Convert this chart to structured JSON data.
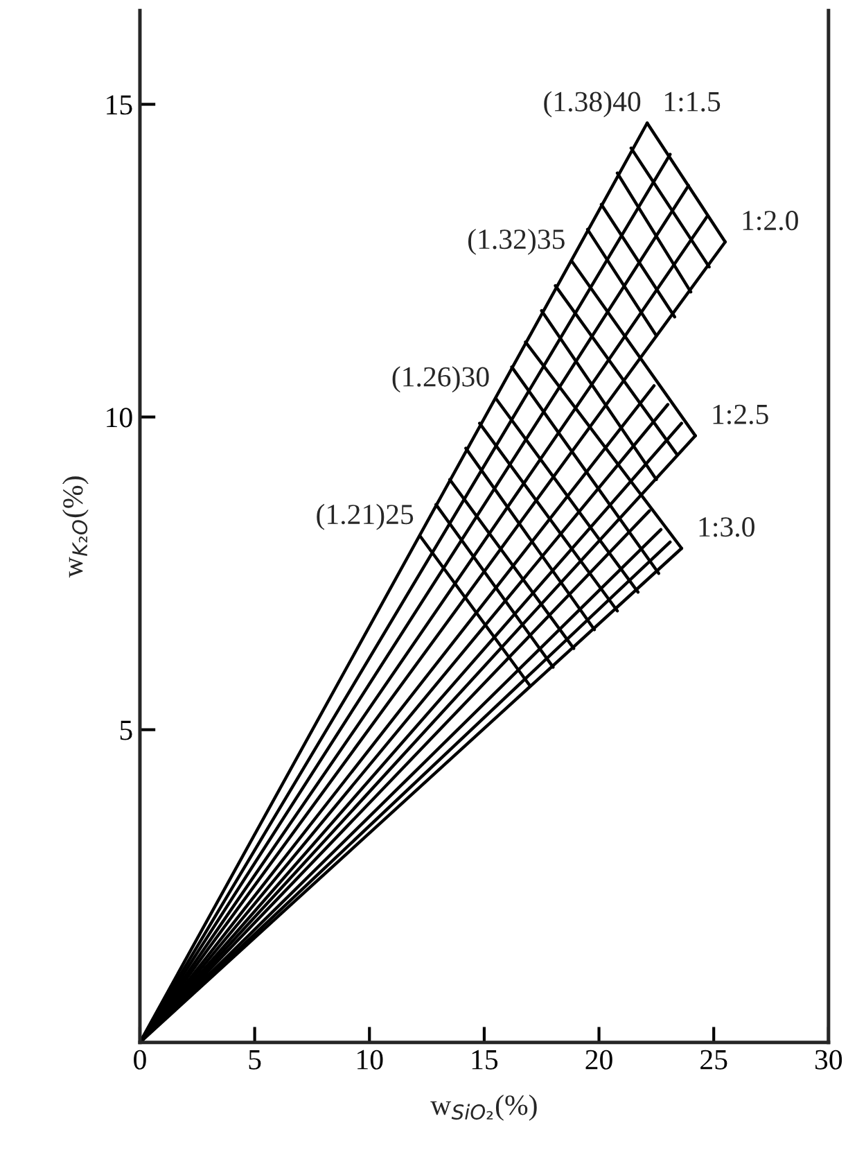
{
  "chart_data": {
    "type": "line",
    "xlabel": "w$_{SiO₂}$(%)",
    "ylabel": "w$_{K₂O}$(%)",
    "xlim": [
      0,
      30
    ],
    "ylim": [
      0,
      16.5
    ],
    "xticks": [
      0,
      5,
      10,
      15,
      20,
      25,
      30
    ],
    "yticks": [
      5,
      10,
      15
    ],
    "grid": false,
    "marker": "none",
    "line_style": "solid",
    "annotations": [
      {
        "text": "(1.21)25",
        "x": 12.2,
        "y": 8.1
      },
      {
        "text": "(1.26)30",
        "x": 15.5,
        "y": 10.3
      },
      {
        "text": "(1.32)35",
        "x": 18.8,
        "y": 12.5
      },
      {
        "text": "(1.38)40",
        "x": 22.1,
        "y": 14.7
      },
      {
        "text": "1:1.5",
        "x": 22.1,
        "y": 14.7
      },
      {
        "text": "1:2.0",
        "x": 25.5,
        "y": 12.8
      },
      {
        "text": "1:2.5",
        "x": 24.2,
        "y": 9.7
      },
      {
        "text": "1:3.0",
        "x": 23.6,
        "y": 7.9
      }
    ],
    "series": [
      {
        "color": "#000000",
        "x": [
          0,
          22.1
        ],
        "values": [
          0,
          14.7
        ]
      },
      {
        "color": "#000000",
        "x": [
          0,
          23.1
        ],
        "values": [
          0,
          14.2
        ]
      },
      {
        "color": "#000000",
        "x": [
          0,
          23.9
        ],
        "values": [
          0,
          13.7
        ]
      },
      {
        "color": "#000000",
        "x": [
          0,
          24.7
        ],
        "values": [
          0,
          13.2
        ]
      },
      {
        "color": "#000000",
        "x": [
          0,
          25.5
        ],
        "values": [
          0,
          12.8
        ]
      },
      {
        "color": "#000000",
        "x": [
          0,
          22.4
        ],
        "values": [
          0,
          10.5
        ]
      },
      {
        "color": "#000000",
        "x": [
          0,
          23.0
        ],
        "values": [
          0,
          10.2
        ]
      },
      {
        "color": "#000000",
        "x": [
          0,
          23.6
        ],
        "values": [
          0,
          9.9
        ]
      },
      {
        "color": "#000000",
        "x": [
          0,
          24.2
        ],
        "values": [
          0,
          9.7
        ]
      },
      {
        "color": "#000000",
        "x": [
          0,
          22.2
        ],
        "values": [
          0,
          8.5
        ]
      },
      {
        "color": "#000000",
        "x": [
          0,
          22.7
        ],
        "values": [
          0,
          8.2
        ]
      },
      {
        "color": "#000000",
        "x": [
          0,
          23.1
        ],
        "values": [
          0,
          8.0
        ]
      },
      {
        "color": "#000000",
        "x": [
          0,
          23.6
        ],
        "values": [
          0,
          7.9
        ]
      },
      {
        "color": "#000000",
        "x": [
          12.2,
          17.0
        ],
        "values": [
          8.1,
          5.7
        ]
      },
      {
        "color": "#000000",
        "x": [
          12.9,
          18.0
        ],
        "values": [
          8.6,
          6.0
        ]
      },
      {
        "color": "#000000",
        "x": [
          13.5,
          18.9
        ],
        "values": [
          9.0,
          6.3
        ]
      },
      {
        "color": "#000000",
        "x": [
          14.2,
          19.8
        ],
        "values": [
          9.5,
          6.6
        ]
      },
      {
        "color": "#000000",
        "x": [
          14.8,
          20.8
        ],
        "values": [
          9.9,
          6.9
        ]
      },
      {
        "color": "#000000",
        "x": [
          15.5,
          21.7
        ],
        "values": [
          10.3,
          7.2
        ]
      },
      {
        "color": "#000000",
        "x": [
          16.2,
          22.6
        ],
        "values": [
          10.8,
          7.5
        ]
      },
      {
        "color": "#000000",
        "x": [
          16.8,
          23.6
        ],
        "values": [
          11.2,
          7.9
        ]
      },
      {
        "color": "#000000",
        "x": [
          17.5,
          22.5
        ],
        "values": [
          11.7,
          9.0
        ]
      },
      {
        "color": "#000000",
        "x": [
          18.1,
          23.4
        ],
        "values": [
          12.1,
          9.4
        ]
      },
      {
        "color": "#000000",
        "x": [
          18.8,
          24.2
        ],
        "values": [
          12.5,
          9.7
        ]
      },
      {
        "color": "#000000",
        "x": [
          19.5,
          22.5
        ],
        "values": [
          13.0,
          11.3
        ]
      },
      {
        "color": "#000000",
        "x": [
          20.1,
          23.3
        ],
        "values": [
          13.4,
          11.6
        ]
      },
      {
        "color": "#000000",
        "x": [
          20.8,
          24.0
        ],
        "values": [
          13.9,
          12.0
        ]
      },
      {
        "color": "#000000",
        "x": [
          21.4,
          24.8
        ],
        "values": [
          14.3,
          12.4
        ]
      },
      {
        "color": "#000000",
        "x": [
          22.1,
          25.5
        ],
        "values": [
          14.7,
          12.8
        ]
      }
    ]
  }
}
